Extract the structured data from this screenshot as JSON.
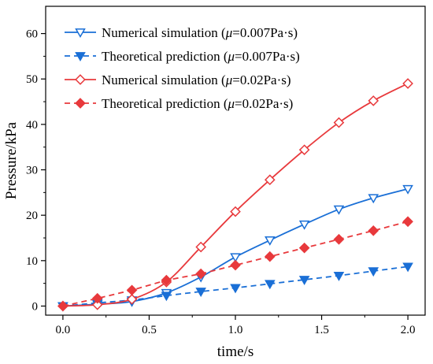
{
  "chart_data": {
    "type": "line",
    "xlabel": "time/s",
    "ylabel": "Pressure/kPa",
    "xlim": [
      -0.1,
      2.1
    ],
    "ylim": [
      -2,
      66
    ],
    "x_ticks": [
      0.0,
      0.5,
      1.0,
      1.5,
      2.0
    ],
    "x_tick_labels": [
      "0.0",
      "0.5",
      "1.0",
      "1.5",
      "2.0"
    ],
    "y_ticks": [
      0,
      10,
      20,
      30,
      40,
      50,
      60
    ],
    "y_tick_labels": [
      "0",
      "10",
      "20",
      "30",
      "40",
      "50",
      "60"
    ],
    "legend_position": "top-left",
    "series": [
      {
        "name_prefix": "Numerical simulation (",
        "name_mu": "μ",
        "name_suffix": "=0.007Pa·s)",
        "color": "#1a6fd6",
        "line_style": "solid",
        "marker": "triangle-down-open",
        "x": [
          0.0,
          0.2,
          0.4,
          0.6,
          0.8,
          1.0,
          1.2,
          1.4,
          1.6,
          1.8,
          2.0
        ],
        "y": [
          0.0,
          0.4,
          1.0,
          2.9,
          6.4,
          10.8,
          14.5,
          18.0,
          21.3,
          23.8,
          25.8
        ]
      },
      {
        "name_prefix": "Theoretical prediction (",
        "name_mu": "μ",
        "name_suffix": "=0.007Pa·s)",
        "color": "#1a6fd6",
        "line_style": "dashed",
        "marker": "triangle-down-filled",
        "x": [
          0.0,
          0.2,
          0.4,
          0.6,
          0.8,
          1.0,
          1.2,
          1.4,
          1.6,
          1.8,
          2.0
        ],
        "y": [
          0.0,
          0.7,
          1.3,
          2.3,
          3.2,
          4.0,
          4.9,
          5.8,
          6.7,
          7.7,
          8.7
        ]
      },
      {
        "name_prefix": "Numerical simulation (",
        "name_mu": "μ",
        "name_suffix": "=0.02Pa·s)",
        "color": "#e8393c",
        "line_style": "solid",
        "marker": "diamond-open",
        "x": [
          0.0,
          0.2,
          0.4,
          0.6,
          0.8,
          1.0,
          1.2,
          1.4,
          1.6,
          1.8,
          2.0
        ],
        "y": [
          0.0,
          0.3,
          1.5,
          5.3,
          13.0,
          20.8,
          27.8,
          34.4,
          40.4,
          45.2,
          49.0
        ]
      },
      {
        "name_prefix": "Theoretical prediction (",
        "name_mu": "μ",
        "name_suffix": "=0.02Pa·s)",
        "color": "#e8393c",
        "line_style": "dashed",
        "marker": "diamond-filled",
        "x": [
          0.0,
          0.2,
          0.4,
          0.6,
          0.8,
          1.0,
          1.2,
          1.4,
          1.6,
          1.8,
          2.0
        ],
        "y": [
          0.0,
          1.7,
          3.5,
          5.7,
          7.1,
          9.0,
          10.9,
          12.8,
          14.7,
          16.6,
          18.6
        ]
      }
    ]
  }
}
